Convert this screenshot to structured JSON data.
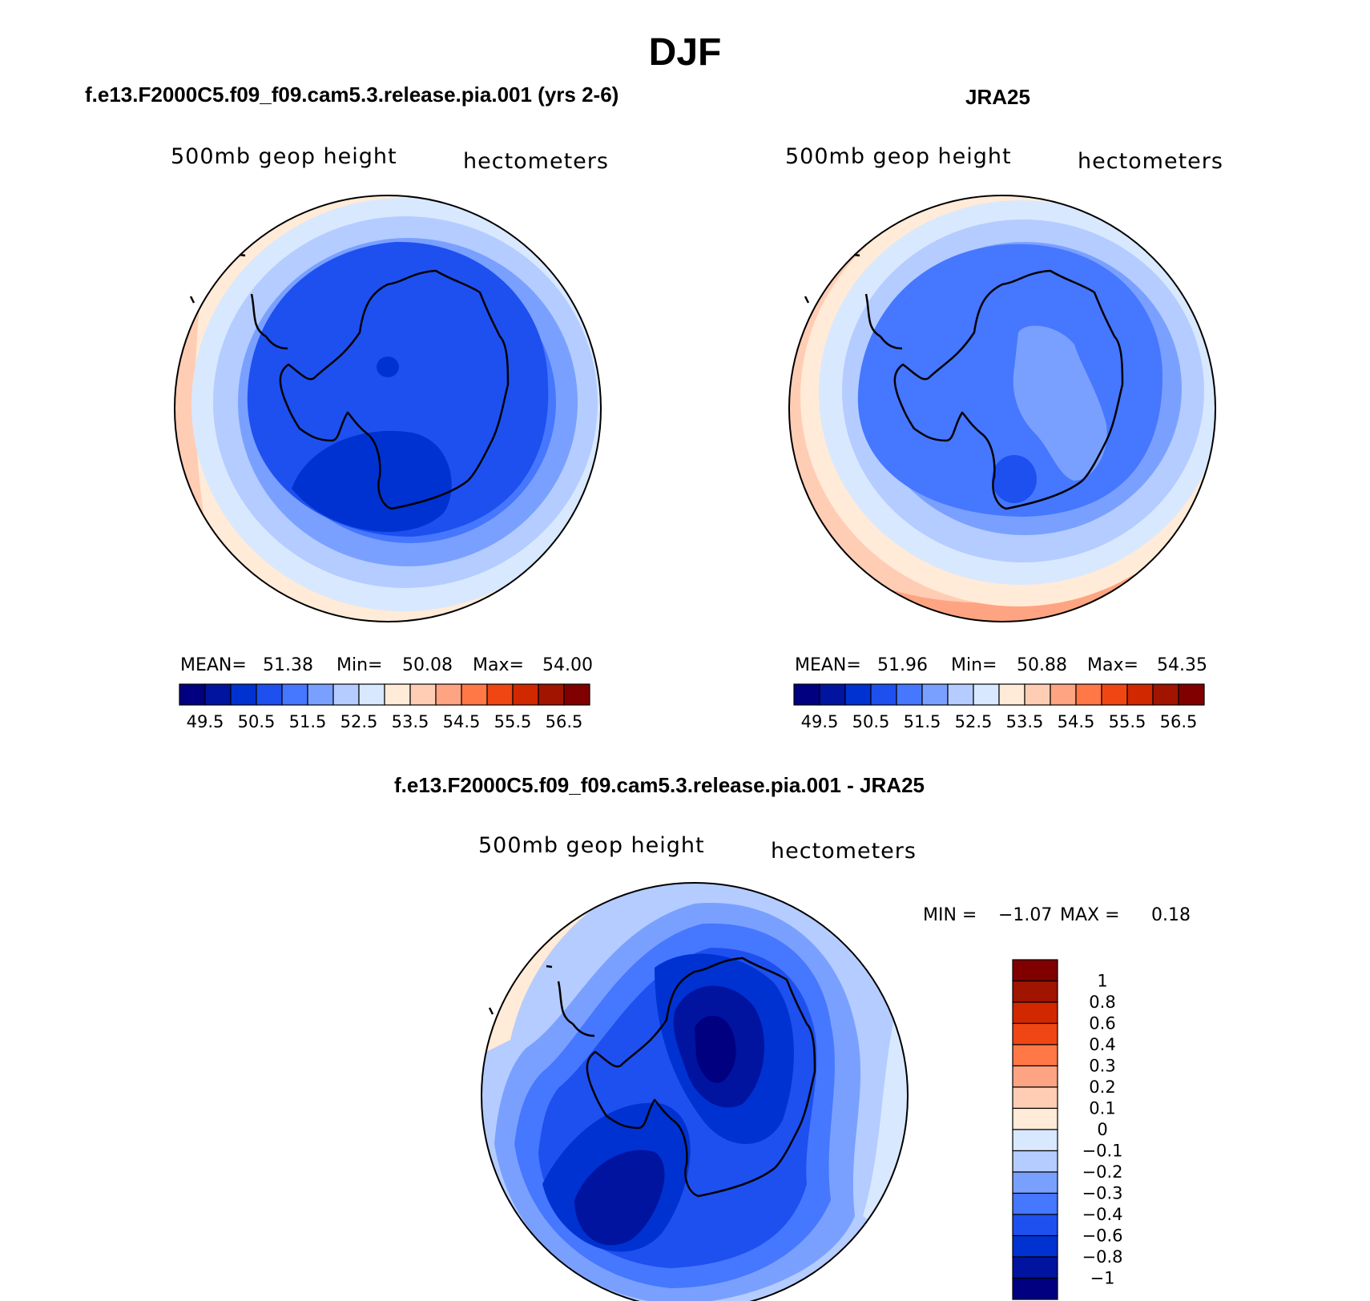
{
  "page_title": "DJF",
  "colors": {
    "levels": [
      "#000080",
      "#0014a0",
      "#0032d2",
      "#1e50f0",
      "#4677ff",
      "#7aa0ff",
      "#b4ccff",
      "#d8e8ff",
      "#ffebd7",
      "#ffcdb4",
      "#ffa482",
      "#ff7846",
      "#f04614",
      "#d22800",
      "#a01400",
      "#800000"
    ]
  },
  "panels": [
    {
      "title": "f.e13.F2000C5.f09_f09.cam5.3.release.pia.001 (yrs 2-6)",
      "left_label": "500mb geop height",
      "right_label": "hectometers",
      "stats": {
        "mean_label": "MEAN=",
        "mean": "51.38",
        "min_label": "Min=",
        "min": "50.08",
        "max_label": "Max=",
        "max": "54.00"
      },
      "colorbar_ticks": [
        "49.5",
        "50.5",
        "51.5",
        "52.5",
        "53.5",
        "54.5",
        "55.5",
        "56.5"
      ]
    },
    {
      "title": "JRA25",
      "left_label": "500mb geop height",
      "right_label": "hectometers",
      "stats": {
        "mean_label": "MEAN=",
        "mean": "51.96",
        "min_label": "Min=",
        "min": "50.88",
        "max_label": "Max=",
        "max": "54.35"
      },
      "colorbar_ticks": [
        "49.5",
        "50.5",
        "51.5",
        "52.5",
        "53.5",
        "54.5",
        "55.5",
        "56.5"
      ]
    },
    {
      "title": "f.e13.F2000C5.f09_f09.cam5.3.release.pia.001 - JRA25",
      "left_label": "500mb geop height",
      "right_label": "hectometers",
      "stats": {
        "min_label": "MIN =",
        "min": "−1.07",
        "max_label": "MAX =",
        "max": "0.18"
      },
      "colorbar_ticks": [
        "1",
        "0.8",
        "0.6",
        "0.4",
        "0.3",
        "0.2",
        "0.1",
        "0",
        "−0.1",
        "−0.2",
        "−0.3",
        "−0.4",
        "−0.6",
        "−0.8",
        "−1"
      ]
    }
  ]
}
